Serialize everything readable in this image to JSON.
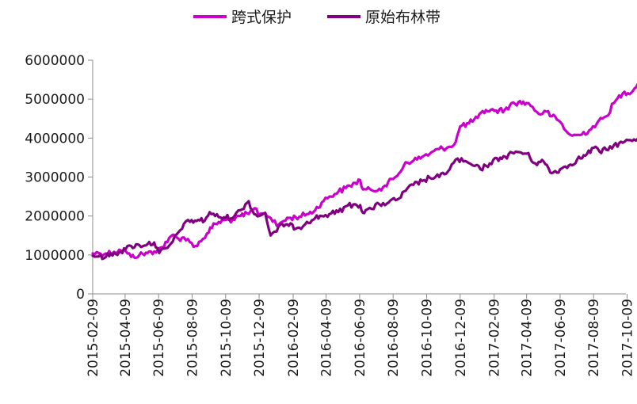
{
  "chart_data": {
    "type": "line",
    "title": "",
    "xlabel": "",
    "ylabel": "",
    "ylim": [
      0,
      6000000
    ],
    "xlim": [
      "2015-02-09",
      "2017-11-15"
    ],
    "yticks": [
      0,
      1000000,
      2000000,
      3000000,
      4000000,
      5000000,
      6000000
    ],
    "xticks": [
      "2015-02-09",
      "2015-04-09",
      "2015-06-09",
      "2015-08-09",
      "2015-10-09",
      "2015-12-09",
      "2016-02-09",
      "2016-04-09",
      "2016-06-09",
      "2016-08-09",
      "2016-10-09",
      "2016-12-09",
      "2017-02-09",
      "2017-04-09",
      "2017-06-09",
      "2017-08-09",
      "2017-10-09"
    ],
    "grid": false,
    "legend_position": "top-center",
    "series": [
      {
        "name": "跨式保护",
        "color": "#cc00cc",
        "points": [
          [
            "2015-02-09",
            1040000
          ],
          [
            "2015-02-20",
            1050000
          ],
          [
            "2015-03-05",
            1040000
          ],
          [
            "2015-03-20",
            1080000
          ],
          [
            "2015-04-01",
            1120000
          ],
          [
            "2015-04-10",
            1100000
          ],
          [
            "2015-04-20",
            950000
          ],
          [
            "2015-05-05",
            1000000
          ],
          [
            "2015-05-20",
            1050000
          ],
          [
            "2015-06-01",
            1090000
          ],
          [
            "2015-06-15",
            1200000
          ],
          [
            "2015-06-25",
            1330000
          ],
          [
            "2015-07-05",
            1520000
          ],
          [
            "2015-07-15",
            1420000
          ],
          [
            "2015-07-25",
            1450000
          ],
          [
            "2015-08-05",
            1330000
          ],
          [
            "2015-08-15",
            1230000
          ],
          [
            "2015-08-25",
            1350000
          ],
          [
            "2015-09-05",
            1550000
          ],
          [
            "2015-09-20",
            1800000
          ],
          [
            "2015-10-09",
            1900000
          ],
          [
            "2015-10-25",
            1900000
          ],
          [
            "2015-11-05",
            2000000
          ],
          [
            "2015-11-20",
            2050000
          ],
          [
            "2015-12-01",
            2200000
          ],
          [
            "2015-12-10",
            2050000
          ],
          [
            "2015-12-20",
            2080000
          ],
          [
            "2015-12-30",
            1950000
          ],
          [
            "2016-01-10",
            1750000
          ],
          [
            "2016-01-20",
            1850000
          ],
          [
            "2016-02-01",
            1950000
          ],
          [
            "2016-02-20",
            1980000
          ],
          [
            "2016-03-05",
            2050000
          ],
          [
            "2016-03-20",
            2150000
          ],
          [
            "2016-04-01",
            2350000
          ],
          [
            "2016-04-15",
            2500000
          ],
          [
            "2016-05-01",
            2620000
          ],
          [
            "2016-05-15",
            2720000
          ],
          [
            "2016-06-01",
            2850000
          ],
          [
            "2016-06-10",
            2920000
          ],
          [
            "2016-06-15",
            2680000
          ],
          [
            "2016-07-01",
            2660000
          ],
          [
            "2016-07-15",
            2700000
          ],
          [
            "2016-07-25",
            2780000
          ],
          [
            "2016-08-09",
            2950000
          ],
          [
            "2016-08-20",
            3100000
          ],
          [
            "2016-09-01",
            3380000
          ],
          [
            "2016-09-15",
            3420000
          ],
          [
            "2016-10-01",
            3520000
          ],
          [
            "2016-10-15",
            3600000
          ],
          [
            "2016-11-01",
            3720000
          ],
          [
            "2016-11-20",
            3780000
          ],
          [
            "2016-12-01",
            3900000
          ],
          [
            "2016-12-09",
            4300000
          ],
          [
            "2016-12-25",
            4380000
          ],
          [
            "2017-01-10",
            4520000
          ],
          [
            "2017-01-25",
            4720000
          ],
          [
            "2017-02-09",
            4700000
          ],
          [
            "2017-02-28",
            4720000
          ],
          [
            "2017-03-10",
            4850000
          ],
          [
            "2017-03-25",
            4920000
          ],
          [
            "2017-04-09",
            4900000
          ],
          [
            "2017-04-20",
            4800000
          ],
          [
            "2017-05-01",
            4620000
          ],
          [
            "2017-05-15",
            4680000
          ],
          [
            "2017-05-25",
            4560000
          ],
          [
            "2017-06-09",
            4420000
          ],
          [
            "2017-06-20",
            4180000
          ],
          [
            "2017-07-01",
            4060000
          ],
          [
            "2017-07-15",
            4080000
          ],
          [
            "2017-08-01",
            4200000
          ],
          [
            "2017-08-15",
            4380000
          ],
          [
            "2017-09-01",
            4560000
          ],
          [
            "2017-09-15",
            4900000
          ],
          [
            "2017-10-01",
            5150000
          ],
          [
            "2017-10-20",
            5220000
          ],
          [
            "2017-10-28",
            5380000
          ],
          [
            "2017-11-05",
            5230000
          ],
          [
            "2017-11-15",
            5220000
          ]
        ]
      },
      {
        "name": "原始布林带",
        "color": "#800080",
        "points": [
          [
            "2015-02-09",
            980000
          ],
          [
            "2015-02-20",
            960000
          ],
          [
            "2015-03-05",
            950000
          ],
          [
            "2015-03-20",
            1050000
          ],
          [
            "2015-04-01",
            1080000
          ],
          [
            "2015-04-10",
            1150000
          ],
          [
            "2015-04-20",
            1230000
          ],
          [
            "2015-05-05",
            1250000
          ],
          [
            "2015-05-20",
            1280000
          ],
          [
            "2015-06-01",
            1320000
          ],
          [
            "2015-06-10",
            1050000
          ],
          [
            "2015-06-25",
            1180000
          ],
          [
            "2015-07-05",
            1350000
          ],
          [
            "2015-07-15",
            1580000
          ],
          [
            "2015-07-25",
            1800000
          ],
          [
            "2015-08-05",
            1850000
          ],
          [
            "2015-08-20",
            1900000
          ],
          [
            "2015-09-01",
            1880000
          ],
          [
            "2015-09-10",
            2100000
          ],
          [
            "2015-09-20",
            2000000
          ],
          [
            "2015-10-09",
            1950000
          ],
          [
            "2015-10-25",
            2000000
          ],
          [
            "2015-11-05",
            2150000
          ],
          [
            "2015-11-20",
            2380000
          ],
          [
            "2015-11-30",
            2050000
          ],
          [
            "2015-12-09",
            2000000
          ],
          [
            "2015-12-20",
            2080000
          ],
          [
            "2015-12-30",
            1500000
          ],
          [
            "2016-01-10",
            1600000
          ],
          [
            "2016-01-20",
            1800000
          ],
          [
            "2016-02-01",
            1750000
          ],
          [
            "2016-02-20",
            1700000
          ],
          [
            "2016-03-05",
            1850000
          ],
          [
            "2016-03-20",
            1950000
          ],
          [
            "2016-04-01",
            2000000
          ],
          [
            "2016-04-15",
            2050000
          ],
          [
            "2016-05-01",
            2100000
          ],
          [
            "2016-05-15",
            2250000
          ],
          [
            "2016-06-01",
            2300000
          ],
          [
            "2016-06-10",
            2280000
          ],
          [
            "2016-06-15",
            2080000
          ],
          [
            "2016-06-20",
            2150000
          ],
          [
            "2016-07-01",
            2180000
          ],
          [
            "2016-07-15",
            2300000
          ],
          [
            "2016-08-01",
            2350000
          ],
          [
            "2016-08-20",
            2450000
          ],
          [
            "2016-09-01",
            2650000
          ],
          [
            "2016-09-15",
            2800000
          ],
          [
            "2016-10-01",
            2900000
          ],
          [
            "2016-10-15",
            2980000
          ],
          [
            "2016-11-01",
            3000000
          ],
          [
            "2016-11-20",
            3200000
          ],
          [
            "2016-12-01",
            3450000
          ],
          [
            "2016-12-15",
            3400000
          ],
          [
            "2017-01-01",
            3300000
          ],
          [
            "2017-01-15",
            3200000
          ],
          [
            "2017-02-01",
            3350000
          ],
          [
            "2017-02-20",
            3500000
          ],
          [
            "2017-03-01",
            3520000
          ],
          [
            "2017-03-20",
            3650000
          ],
          [
            "2017-04-09",
            3600000
          ],
          [
            "2017-04-25",
            3350000
          ],
          [
            "2017-05-10",
            3400000
          ],
          [
            "2017-05-25",
            3100000
          ],
          [
            "2017-06-09",
            3200000
          ],
          [
            "2017-06-25",
            3300000
          ],
          [
            "2017-07-10",
            3450000
          ],
          [
            "2017-07-25",
            3550000
          ],
          [
            "2017-08-09",
            3750000
          ],
          [
            "2017-08-20",
            3650000
          ],
          [
            "2017-09-01",
            3700000
          ],
          [
            "2017-09-15",
            3820000
          ],
          [
            "2017-10-01",
            3880000
          ],
          [
            "2017-10-15",
            3950000
          ],
          [
            "2017-10-28",
            3980000
          ],
          [
            "2017-11-05",
            4100000
          ],
          [
            "2017-11-15",
            4120000
          ]
        ]
      }
    ]
  }
}
